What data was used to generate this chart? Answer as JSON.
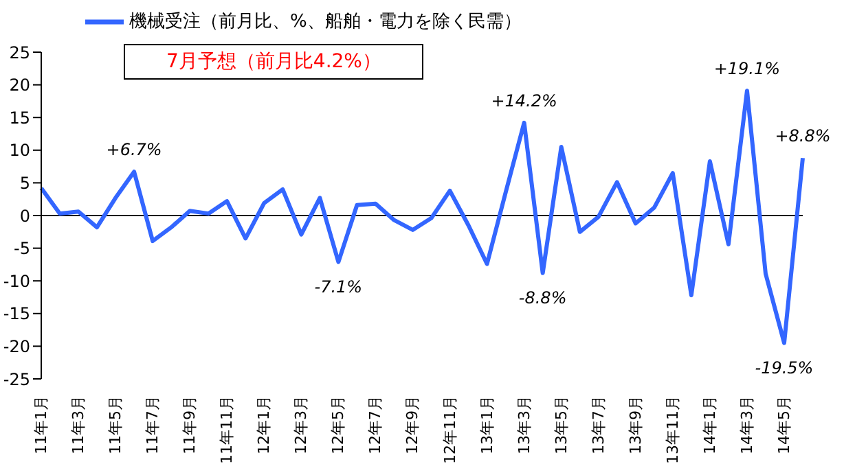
{
  "chart_data": {
    "type": "line",
    "categories": [
      "11年1月",
      null,
      "11年3月",
      null,
      "11年5月",
      null,
      "11年7月",
      null,
      "11年9月",
      null,
      "11年11月",
      null,
      "12年1月",
      null,
      "12年3月",
      null,
      "12年5月",
      null,
      "12年7月",
      null,
      "12年9月",
      null,
      "12年11月",
      null,
      "13年1月",
      null,
      "13年3月",
      null,
      "13年5月",
      null,
      "13年7月",
      null,
      "13年9月",
      null,
      "13年11月",
      null,
      "14年1月",
      null,
      "14年3月",
      null,
      "14年5月",
      null
    ],
    "series": [
      {
        "name": "機械受注（前月比、%、船舶・電力を除く民需）",
        "color": "#3366ff",
        "values": [
          4.2,
          0.3,
          0.6,
          -1.8,
          2.7,
          6.7,
          -3.9,
          -1.8,
          0.7,
          0.3,
          2.2,
          -3.5,
          1.9,
          4.0,
          -2.9,
          2.7,
          -7.1,
          1.6,
          1.8,
          -0.7,
          -2.2,
          -0.4,
          3.8,
          -1.5,
          -7.4,
          3.5,
          14.2,
          -8.8,
          10.5,
          -2.5,
          -0.2,
          5.1,
          -1.2,
          1.2,
          6.5,
          -12.2,
          8.3,
          -4.4,
          19.1,
          -8.9,
          -19.5,
          8.8
        ],
        "value_labels": [
          null,
          null,
          null,
          null,
          null,
          "+6.7%",
          null,
          null,
          null,
          null,
          null,
          null,
          null,
          null,
          null,
          null,
          "-7.1%",
          null,
          null,
          null,
          null,
          null,
          null,
          null,
          null,
          null,
          "+14.2%",
          "-8.8%",
          null,
          null,
          null,
          null,
          null,
          null,
          null,
          null,
          null,
          null,
          "+19.1%",
          null,
          "-19.5%",
          "+8.8%"
        ]
      }
    ],
    "ylim": [
      -25,
      25
    ],
    "yticks": [
      -25,
      -20,
      -15,
      -10,
      -5,
      0,
      5,
      10,
      15,
      20,
      25
    ],
    "grid": false,
    "ref_lines": [
      {
        "axis": "y",
        "value": 0,
        "color": "#000000"
      }
    ],
    "legend": "top left",
    "marker": "none",
    "line_style": "solid",
    "annotations": [
      "7月予想（前月比4.2%）"
    ]
  }
}
